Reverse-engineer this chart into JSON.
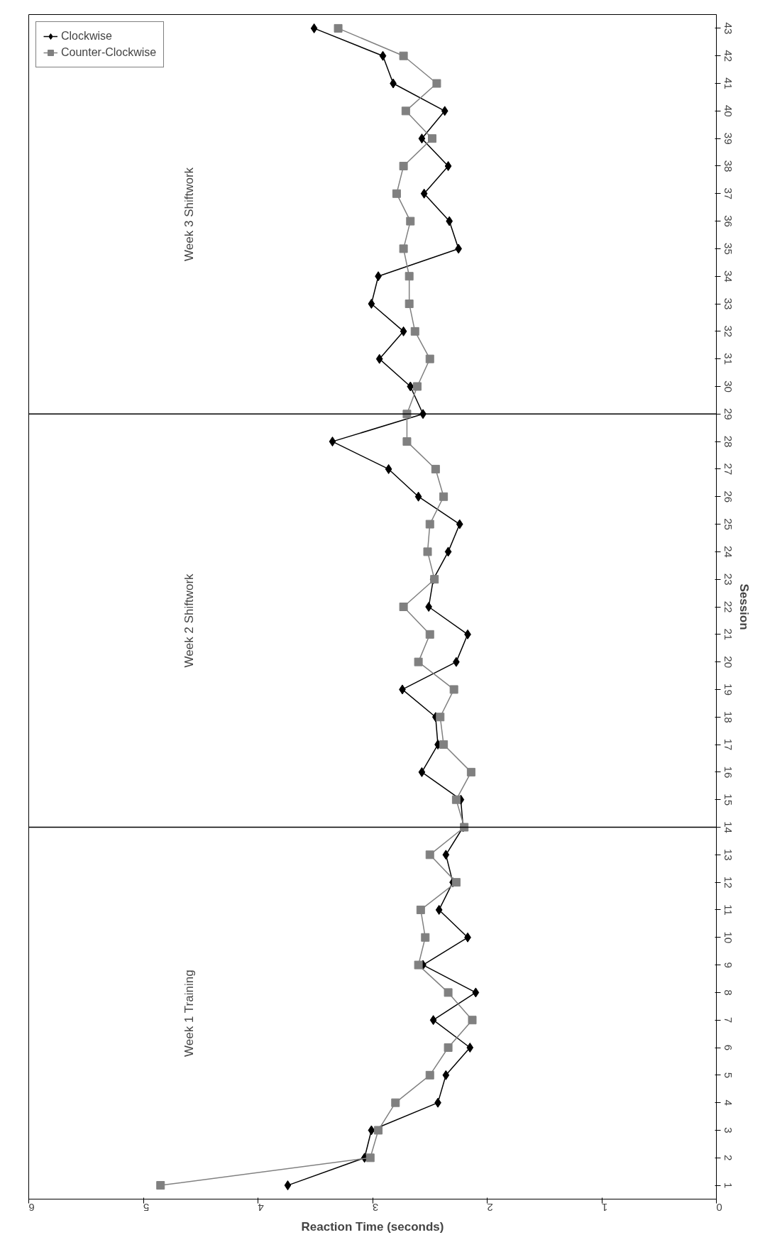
{
  "chart_data": {
    "type": "line",
    "orientation": "horizontal",
    "xlabel": "Reaction Time (seconds)",
    "ylabel": "Session",
    "categories": [
      "43",
      "42",
      "41",
      "40",
      "39",
      "38",
      "37",
      "36",
      "35",
      "34",
      "33",
      "32",
      "31",
      "30",
      "29",
      "28",
      "27",
      "26",
      "25",
      "24",
      "23",
      "22",
      "21",
      "20",
      "19",
      "18",
      "17",
      "16",
      "15",
      "14",
      "13",
      "12",
      "11",
      "10",
      "9",
      "8",
      "7",
      "6",
      "5",
      "4",
      "3",
      "2",
      "1"
    ],
    "xlim": [
      6,
      0
    ],
    "xticks": [
      0,
      1,
      2,
      3,
      4,
      5,
      6
    ],
    "series": [
      {
        "name": "Clockwise",
        "color": "#000000",
        "marker": "diamond",
        "values": [
          3.51,
          2.91,
          2.82,
          2.37,
          2.57,
          2.34,
          2.55,
          2.33,
          2.25,
          2.95,
          3.01,
          2.73,
          2.94,
          2.67,
          2.56,
          3.35,
          2.86,
          2.6,
          2.24,
          2.34,
          2.47,
          2.51,
          2.17,
          2.27,
          2.74,
          2.45,
          2.43,
          2.57,
          2.23,
          2.21,
          2.36,
          2.3,
          2.42,
          2.17,
          2.56,
          2.1,
          2.47,
          2.15,
          2.36,
          2.43,
          3.01,
          3.07,
          3.74
        ]
      },
      {
        "name": "Counter-Clockwise",
        "color": "#808080",
        "marker": "square",
        "values": [
          3.3,
          2.73,
          2.44,
          2.71,
          2.48,
          2.73,
          2.79,
          2.67,
          2.73,
          2.68,
          2.68,
          2.63,
          2.5,
          2.61,
          2.7,
          2.7,
          2.45,
          2.38,
          2.5,
          2.52,
          2.46,
          2.73,
          2.5,
          2.6,
          2.29,
          2.41,
          2.38,
          2.14,
          2.27,
          2.2,
          2.5,
          2.27,
          2.58,
          2.54,
          2.6,
          2.34,
          2.13,
          2.34,
          2.5,
          2.8,
          2.95,
          3.02,
          4.85
        ]
      }
    ],
    "ref_lines": [
      {
        "axis": "y",
        "value": "29",
        "color": "#000000"
      },
      {
        "axis": "y",
        "value": "14",
        "color": "#000000"
      }
    ],
    "annotations": [
      "Week 3 Shiftwork",
      "Week 2 Shiftwork",
      "Week 1 Training"
    ],
    "legend": "top left",
    "grid": false
  }
}
